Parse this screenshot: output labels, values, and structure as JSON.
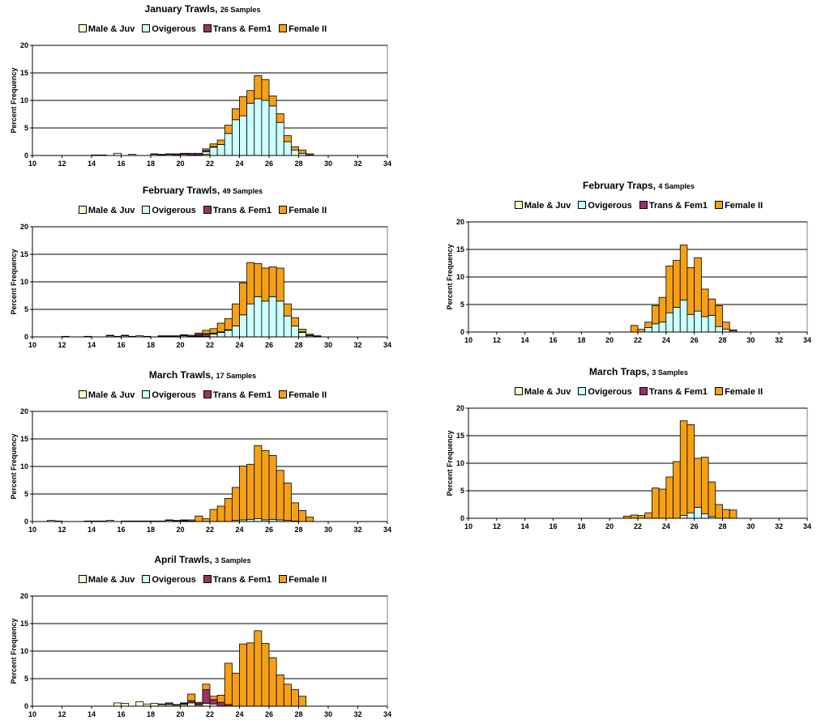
{
  "legend_labels": [
    "Male & Juv",
    "Ovigerous",
    "Trans & Fem1",
    "Female II"
  ],
  "colors": {
    "male_juv": "#FFFFCC",
    "ovigerous": "#CCFFFF",
    "trans_fem1": "#993366",
    "female_ii": "#F5A015"
  },
  "chart_data": [
    {
      "type": "bar",
      "title": "January Trawls",
      "subtitle": "26 Samples",
      "ylabel": "Percent Frequency",
      "xlim": [
        10,
        34
      ],
      "ylim": [
        0,
        20
      ],
      "xticks": [
        10,
        12,
        14,
        16,
        18,
        20,
        22,
        24,
        26,
        28,
        30,
        32,
        34
      ],
      "yticks": [
        0,
        5,
        10,
        15,
        20
      ],
      "bin_width": 0.5,
      "grid": true,
      "legend": "top",
      "x": [
        14,
        14.5,
        15.5,
        16.5,
        18,
        18.5,
        19,
        19.5,
        20,
        20.5,
        21,
        21.5,
        22,
        22.5,
        23,
        23.5,
        24,
        24.5,
        25,
        25.5,
        26,
        26.5,
        27,
        27.5,
        28,
        28.5
      ],
      "series": [
        {
          "name": "Male & Juv",
          "values": [
            0.1,
            0.1,
            0.4,
            0.2,
            0.2,
            0.1,
            0.2,
            0.1,
            0.2,
            0.1,
            0.1,
            0.2,
            0,
            0,
            0,
            0,
            0,
            0,
            0,
            0,
            0,
            0,
            0,
            0,
            0,
            0
          ]
        },
        {
          "name": "Ovigerous",
          "values": [
            0,
            0,
            0,
            0,
            0,
            0,
            0,
            0,
            0,
            0,
            0,
            0.5,
            1.5,
            2,
            4,
            6.5,
            7.2,
            9.5,
            10.3,
            10,
            9,
            6,
            2.5,
            1,
            0.4,
            0
          ]
        },
        {
          "name": "Trans & Fem1",
          "values": [
            0,
            0,
            0,
            0,
            0.1,
            0.1,
            0.1,
            0.2,
            0.2,
            0.3,
            0.3,
            0.2,
            0.1,
            0,
            0,
            0,
            0,
            0,
            0,
            0,
            0,
            0,
            0,
            0,
            0,
            0.1
          ]
        },
        {
          "name": "Female II",
          "values": [
            0,
            0,
            0,
            0,
            0,
            0,
            0,
            0,
            0,
            0,
            0,
            0.3,
            0.5,
            0.8,
            1.5,
            2,
            3.5,
            2.3,
            4.2,
            3.8,
            1.8,
            1.6,
            1.1,
            0.6,
            0.6,
            0.2
          ]
        }
      ]
    },
    {
      "type": "bar",
      "title": "February Trawls",
      "subtitle": "49 Samples",
      "ylabel": "Percent Frequency",
      "xlim": [
        10,
        34
      ],
      "ylim": [
        0,
        20
      ],
      "xticks": [
        10,
        12,
        14,
        16,
        18,
        20,
        22,
        24,
        26,
        28,
        30,
        32,
        34
      ],
      "yticks": [
        0,
        5,
        10,
        15,
        20
      ],
      "bin_width": 0.5,
      "grid": true,
      "legend": "top",
      "x": [
        12,
        13.5,
        15,
        15.5,
        16,
        16.5,
        17,
        17.5,
        18.5,
        19,
        19.5,
        20,
        20.5,
        21,
        21.5,
        22,
        22.5,
        23,
        23.5,
        24,
        24.5,
        25,
        25.5,
        26,
        26.5,
        27,
        27.5,
        28,
        28.5,
        29
      ],
      "series": [
        {
          "name": "Male & Juv",
          "values": [
            0.1,
            0.1,
            0.2,
            0.1,
            0.2,
            0.1,
            0.2,
            0.1,
            0.1,
            0.1,
            0.1,
            0.2,
            0.1,
            0.1,
            0.1,
            0,
            0,
            0,
            0,
            0,
            0,
            0,
            0,
            0,
            0,
            0,
            0,
            0,
            0,
            0
          ]
        },
        {
          "name": "Ovigerous",
          "values": [
            0,
            0,
            0,
            0,
            0,
            0,
            0,
            0,
            0,
            0,
            0,
            0,
            0,
            0.1,
            0.2,
            0.5,
            0.8,
            1.2,
            2,
            4,
            6,
            7.3,
            6.5,
            7.3,
            6.5,
            3.8,
            2,
            0.8,
            0.2,
            0
          ]
        },
        {
          "name": "Trans & Fem1",
          "values": [
            0,
            0,
            0.1,
            0,
            0.1,
            0,
            0,
            0,
            0.1,
            0.1,
            0.1,
            0.2,
            0.2,
            0.3,
            0.3,
            0.2,
            0.1,
            0.1,
            0,
            0,
            0,
            0,
            0,
            0,
            0,
            0,
            0,
            0.1,
            0.1,
            0.1
          ]
        },
        {
          "name": "Female II",
          "values": [
            0,
            0,
            0,
            0,
            0,
            0,
            0,
            0,
            0,
            0,
            0,
            0,
            0,
            0.2,
            0.6,
            0.8,
            1.6,
            2,
            4,
            5.8,
            7.5,
            6,
            6,
            5.4,
            6,
            2.2,
            1.5,
            0.5,
            0.2,
            0.1
          ]
        }
      ]
    },
    {
      "type": "bar",
      "title": "March Trawls",
      "subtitle": "17 Samples",
      "ylabel": "Percent Frequency",
      "xlim": [
        10,
        34
      ],
      "ylim": [
        0,
        20
      ],
      "xticks": [
        10,
        12,
        14,
        16,
        18,
        20,
        22,
        24,
        26,
        28,
        30,
        32,
        34
      ],
      "yticks": [
        0,
        5,
        10,
        15,
        20
      ],
      "bin_width": 0.5,
      "grid": true,
      "legend": "top",
      "x": [
        11,
        11.5,
        13.5,
        14,
        14.5,
        15,
        16,
        16.5,
        17,
        17.5,
        18,
        18.5,
        19,
        19.5,
        20,
        20.5,
        21,
        21.5,
        22,
        22.5,
        23,
        23.5,
        24,
        24.5,
        25,
        25.5,
        26,
        26.5,
        27,
        27.5,
        28,
        28.5
      ],
      "series": [
        {
          "name": "Male & Juv",
          "values": [
            0.2,
            0.1,
            0.1,
            0.1,
            0.1,
            0.2,
            0.1,
            0.1,
            0.1,
            0.1,
            0.1,
            0.1,
            0.2,
            0.1,
            0.1,
            0,
            0,
            0,
            0,
            0,
            0,
            0,
            0,
            0,
            0,
            0,
            0,
            0,
            0,
            0,
            0,
            0
          ]
        },
        {
          "name": "Ovigerous",
          "values": [
            0,
            0,
            0,
            0,
            0,
            0,
            0,
            0,
            0,
            0,
            0,
            0,
            0,
            0,
            0,
            0,
            0,
            0,
            0,
            0,
            0,
            0.2,
            0.3,
            0.4,
            0.5,
            0.3,
            0.4,
            0.3,
            0.2,
            0.1,
            0,
            0
          ]
        },
        {
          "name": "Trans & Fem1",
          "values": [
            0,
            0,
            0,
            0,
            0,
            0,
            0,
            0,
            0,
            0,
            0,
            0,
            0.1,
            0.1,
            0.1,
            0.1,
            0,
            0,
            0,
            0,
            0,
            0,
            0,
            0,
            0,
            0,
            0,
            0,
            0,
            0,
            0,
            0
          ]
        },
        {
          "name": "Female II",
          "values": [
            0,
            0,
            0,
            0,
            0,
            0,
            0,
            0,
            0,
            0,
            0,
            0,
            0,
            0,
            0.1,
            0.2,
            1,
            0.5,
            2.2,
            2.8,
            4.2,
            6,
            9.8,
            10,
            13.3,
            12.6,
            11.6,
            9,
            6.8,
            3.3,
            2,
            0.8
          ]
        }
      ]
    },
    {
      "type": "bar",
      "title": "April Trawls",
      "subtitle": "3 Samples",
      "ylabel": "Percent Frequency",
      "xlim": [
        10,
        34
      ],
      "ylim": [
        0,
        20
      ],
      "xticks": [
        10,
        12,
        14,
        16,
        18,
        20,
        22,
        24,
        26,
        28,
        30,
        32,
        34
      ],
      "yticks": [
        0,
        5,
        10,
        15,
        20
      ],
      "bin_width": 0.5,
      "grid": true,
      "legend": "top",
      "x": [
        15.5,
        16,
        17,
        17.5,
        18,
        18.5,
        19,
        19.5,
        20,
        20.5,
        21,
        21.5,
        22,
        22.5,
        23,
        23.5,
        24,
        24.5,
        25,
        25.5,
        26,
        26.5,
        27,
        27.5,
        28
      ],
      "series": [
        {
          "name": "Male & Juv",
          "values": [
            0.6,
            0.5,
            0.8,
            0.4,
            0.5,
            0.3,
            0.3,
            0.2,
            0.3,
            0.6,
            0.2,
            0.5,
            0.4,
            0,
            0,
            0,
            0,
            0,
            0,
            0,
            0,
            0,
            0,
            0,
            0
          ]
        },
        {
          "name": "Ovigerous",
          "values": [
            0,
            0,
            0,
            0,
            0,
            0,
            0,
            0,
            0,
            0,
            0,
            0,
            0,
            0,
            0,
            0,
            0,
            0,
            0,
            0,
            0,
            0,
            0,
            0,
            0
          ]
        },
        {
          "name": "Trans & Fem1",
          "values": [
            0,
            0,
            0,
            0,
            0,
            0.1,
            0.3,
            0.1,
            0.2,
            0.4,
            0.3,
            2.5,
            0.8,
            0.7,
            0.3,
            0,
            0,
            0,
            0,
            0,
            0,
            0,
            0,
            0,
            0
          ]
        },
        {
          "name": "Female II",
          "values": [
            0,
            0,
            0,
            0,
            0,
            0,
            0,
            0,
            0.1,
            1.2,
            0.2,
            1,
            0.6,
            1.3,
            7.5,
            6,
            11.3,
            11.5,
            13.7,
            11.4,
            8.8,
            5.7,
            4,
            3,
            1.8
          ]
        }
      ]
    },
    {
      "type": "bar",
      "title": "February Traps",
      "subtitle": "4 Samples",
      "ylabel": "Percent Frequency",
      "xlim": [
        10,
        34
      ],
      "ylim": [
        0,
        20
      ],
      "xticks": [
        10,
        12,
        14,
        16,
        18,
        20,
        22,
        24,
        26,
        28,
        30,
        32,
        34
      ],
      "yticks": [
        0,
        5,
        10,
        15,
        20
      ],
      "bin_width": 0.5,
      "grid": true,
      "legend": "top",
      "x": [
        21.5,
        22,
        22.5,
        23,
        23.5,
        24,
        24.5,
        25,
        25.5,
        26,
        26.5,
        27,
        27.5,
        28,
        28.5
      ],
      "series": [
        {
          "name": "Male & Juv",
          "values": [
            0,
            0,
            0,
            0,
            0,
            0,
            0,
            0,
            0,
            0,
            0,
            0,
            0,
            0,
            0
          ]
        },
        {
          "name": "Ovigerous",
          "values": [
            0,
            0,
            0.8,
            1.5,
            1.8,
            3.5,
            4.5,
            5.8,
            3.2,
            3.8,
            2.8,
            3,
            1,
            0.5,
            0.2
          ]
        },
        {
          "name": "Trans & Fem1",
          "values": [
            0,
            0,
            0,
            0,
            0,
            0,
            0,
            0,
            0,
            0,
            0,
            0,
            0,
            0,
            0
          ]
        },
        {
          "name": "Female II",
          "values": [
            1.2,
            0.5,
            1,
            3.3,
            4.5,
            8.5,
            8.5,
            10,
            8.5,
            9.7,
            5,
            3,
            3.8,
            1.3,
            0.2
          ]
        }
      ]
    },
    {
      "type": "bar",
      "title": "March Traps",
      "subtitle": "3 Samples",
      "ylabel": "Percent Frequency",
      "xlim": [
        10,
        34
      ],
      "ylim": [
        0,
        20
      ],
      "xticks": [
        10,
        12,
        14,
        16,
        18,
        20,
        22,
        24,
        26,
        28,
        30,
        32,
        34
      ],
      "yticks": [
        0,
        5,
        10,
        15,
        20
      ],
      "bin_width": 0.5,
      "grid": true,
      "legend": "top",
      "x": [
        21,
        21.5,
        22,
        22.5,
        23,
        23.5,
        24,
        24.5,
        25,
        25.5,
        26,
        26.5,
        27,
        27.5,
        28,
        28.5
      ],
      "series": [
        {
          "name": "Male & Juv",
          "values": [
            0,
            0,
            0,
            0,
            0,
            0,
            0,
            0,
            0,
            0,
            0,
            0,
            0,
            0,
            0,
            0
          ]
        },
        {
          "name": "Ovigerous",
          "values": [
            0,
            0,
            0,
            0,
            0,
            0,
            0,
            0,
            0.5,
            1,
            2,
            0.8,
            0.3,
            0,
            0,
            0
          ]
        },
        {
          "name": "Trans & Fem1",
          "values": [
            0,
            0,
            0,
            0,
            0,
            0,
            0,
            0,
            0,
            0,
            0,
            0,
            0,
            0,
            0,
            0
          ]
        },
        {
          "name": "Female II",
          "values": [
            0.4,
            0.6,
            0.5,
            1,
            5.5,
            5.3,
            7.5,
            10.3,
            17.2,
            16,
            8.9,
            10.3,
            6.3,
            2.5,
            1.6,
            1.5
          ]
        }
      ]
    }
  ]
}
